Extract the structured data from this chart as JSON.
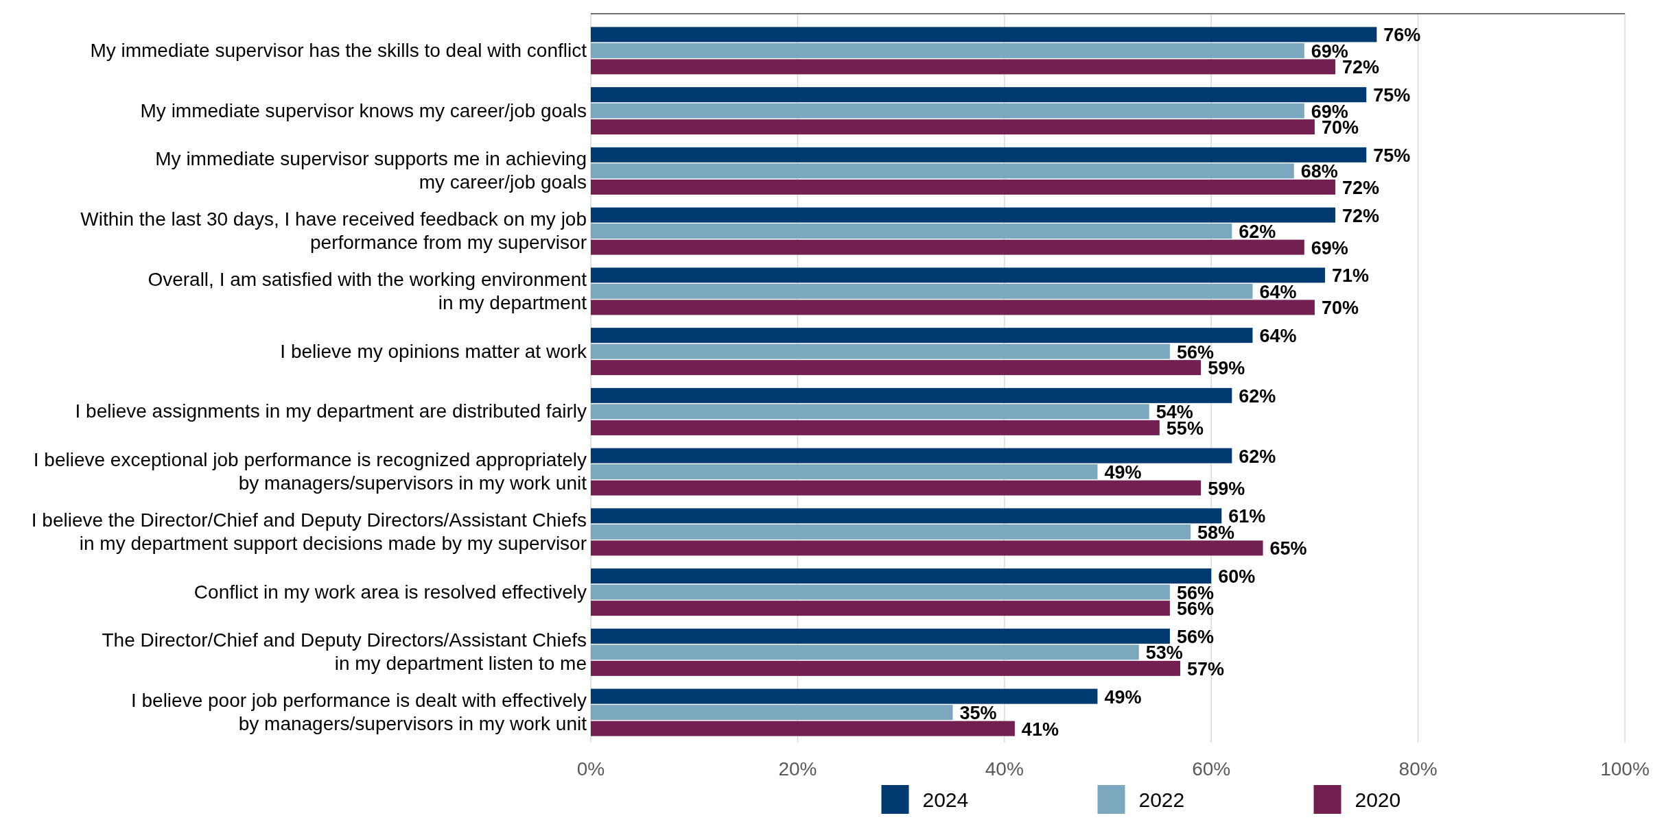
{
  "chart_data": {
    "type": "bar",
    "orientation": "horizontal",
    "categories": [
      "My immediate supervisor has the skills to deal with conflict",
      "My immediate supervisor knows my career/job goals",
      "My immediate supervisor supports me in achieving\nmy career/job goals",
      "Within the last 30 days, I have received feedback on my job\nperformance from my supervisor",
      "Overall, I am satisfied with the working environment\nin my department",
      "I believe my opinions matter at work",
      "I believe assignments in my department are distributed fairly",
      "I believe exceptional job performance is recognized appropriately\nby managers/supervisors in my work unit",
      "I believe the Director/Chief and Deputy Directors/Assistant Chiefs\nin my department support decisions made by my supervisor",
      "Conflict in my work area is resolved effectively",
      "The Director/Chief and Deputy Directors/Assistant Chiefs\nin my department listen to me",
      "I believe poor job performance is dealt with effectively\nby managers/supervisors in my work unit"
    ],
    "series": [
      {
        "name": "2024",
        "color": "#003a70",
        "values": [
          76,
          75,
          75,
          72,
          71,
          64,
          62,
          62,
          61,
          60,
          56,
          49
        ],
        "value_labels": [
          "76%",
          "75%",
          "75%",
          "72%",
          "71%",
          "64%",
          "62%",
          "62%",
          "61%",
          "60%",
          "56%",
          "49%"
        ]
      },
      {
        "name": "2022",
        "color": "#7ba7bf",
        "values": [
          69,
          69,
          68,
          62,
          64,
          56,
          54,
          49,
          58,
          56,
          53,
          35
        ],
        "value_labels": [
          "69%",
          "69%",
          "68%",
          "62%",
          "64%",
          "56%",
          "54%",
          "49%",
          "58%",
          "56%",
          "53%",
          "35%"
        ]
      },
      {
        "name": "2020",
        "color": "#741f51",
        "values": [
          72,
          70,
          72,
          69,
          70,
          59,
          55,
          59,
          65,
          56,
          57,
          41
        ],
        "value_labels": [
          "72%",
          "70%",
          "72%",
          "69%",
          "70%",
          "59%",
          "55%",
          "59%",
          "65%",
          "56%",
          "57%",
          "41%"
        ]
      }
    ],
    "xlim": [
      0,
      100
    ],
    "xticks": [
      {
        "value": 0,
        "label": "0%"
      },
      {
        "value": 20,
        "label": "20%"
      },
      {
        "value": 40,
        "label": "40%"
      },
      {
        "value": 60,
        "label": "60%"
      },
      {
        "value": 80,
        "label": "80%"
      },
      {
        "value": 100,
        "label": "100%"
      }
    ],
    "grid": "x",
    "legend": "bottom"
  }
}
